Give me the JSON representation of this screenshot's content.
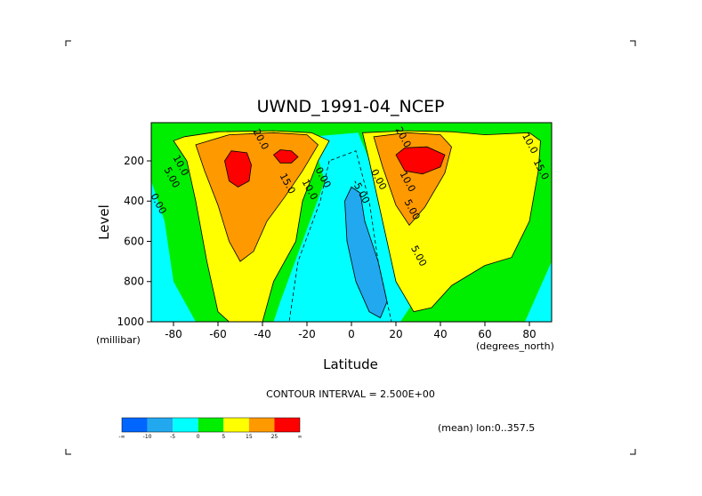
{
  "chart_data": {
    "type": "contour",
    "title": "UWND_1991-04_NCEP",
    "xlabel": "Latitude",
    "ylabel": "Level",
    "x_units": "(degrees_north)",
    "y_units": "(millibar)",
    "xlim": [
      -90,
      90
    ],
    "ylim": [
      1000,
      10
    ],
    "x_ticks": [
      -80,
      -60,
      -40,
      -20,
      0,
      20,
      40,
      60,
      80
    ],
    "x_tick_labels": [
      "-80",
      "-60",
      "-40",
      "-20",
      "0",
      "20",
      "40",
      "60",
      "80"
    ],
    "y_ticks": [
      200,
      400,
      600,
      800,
      1000
    ],
    "y_tick_labels": [
      "200",
      "400",
      "600",
      "800",
      "1000"
    ],
    "contour_interval_text": "CONTOUR INTERVAL = 2.500E+00",
    "mean_text": "(mean) lon:0..357.5",
    "contour_labels": [
      "20.0",
      "10.0",
      "5.00",
      "0.00",
      "15.0",
      "10.0",
      "0.00",
      "-5.00",
      "0.00",
      "20.0",
      "10.0",
      "5.00",
      "5.00",
      "10.0",
      "15.0"
    ],
    "colorbar": {
      "levels": [
        "-∞",
        "-10",
        "-5",
        "0",
        "5",
        "15",
        "25",
        "∞"
      ],
      "colors": [
        "#0066ff",
        "#22a8ee",
        "#00ffff",
        "#00ee00",
        "#ffff00",
        "#ff9900",
        "#ff0000"
      ]
    },
    "regions": [
      {
        "name": "sh-jet-band-5",
        "level": 5,
        "color": "#ffff00",
        "points": [
          [
            -80,
            100
          ],
          [
            -74,
            200
          ],
          [
            -70,
            400
          ],
          [
            -65,
            700
          ],
          [
            -60,
            950
          ],
          [
            -55,
            1000
          ],
          [
            -40,
            1000
          ],
          [
            -35,
            800
          ],
          [
            -25,
            600
          ],
          [
            -22,
            400
          ],
          [
            -15,
            200
          ],
          [
            -10,
            100
          ],
          [
            -18,
            60
          ],
          [
            -35,
            50
          ],
          [
            -60,
            55
          ],
          [
            -75,
            80
          ]
        ]
      },
      {
        "name": "sh-jet-band-15",
        "level": 15,
        "color": "#ff9900",
        "points": [
          [
            -70,
            120
          ],
          [
            -66,
            250
          ],
          [
            -60,
            420
          ],
          [
            -55,
            600
          ],
          [
            -50,
            700
          ],
          [
            -44,
            650
          ],
          [
            -38,
            500
          ],
          [
            -30,
            380
          ],
          [
            -22,
            250
          ],
          [
            -15,
            120
          ],
          [
            -20,
            70
          ],
          [
            -35,
            60
          ],
          [
            -55,
            70
          ]
        ]
      },
      {
        "name": "sh-jet-core-west",
        "level": 25,
        "color": "#ff0000",
        "points": [
          [
            -57,
            200
          ],
          [
            -55,
            300
          ],
          [
            -51,
            330
          ],
          [
            -46,
            300
          ],
          [
            -45,
            220
          ],
          [
            -47,
            160
          ],
          [
            -54,
            150
          ]
        ]
      },
      {
        "name": "sh-jet-core-east",
        "level": 25,
        "color": "#ff0000",
        "points": [
          [
            -35,
            170
          ],
          [
            -32,
            210
          ],
          [
            -27,
            210
          ],
          [
            -24,
            180
          ],
          [
            -27,
            150
          ],
          [
            -32,
            145
          ]
        ]
      },
      {
        "name": "nh-jet-band-5",
        "level": 5,
        "color": "#ffff00",
        "points": [
          [
            5,
            60
          ],
          [
            8,
            200
          ],
          [
            14,
            500
          ],
          [
            20,
            800
          ],
          [
            28,
            950
          ],
          [
            36,
            930
          ],
          [
            45,
            820
          ],
          [
            60,
            720
          ],
          [
            72,
            680
          ],
          [
            80,
            500
          ],
          [
            84,
            250
          ],
          [
            85,
            100
          ],
          [
            80,
            60
          ],
          [
            60,
            70
          ],
          [
            45,
            55
          ],
          [
            25,
            50
          ]
        ]
      },
      {
        "name": "nh-jet-band-15",
        "level": 15,
        "color": "#ff9900",
        "points": [
          [
            10,
            80
          ],
          [
            14,
            230
          ],
          [
            20,
            420
          ],
          [
            26,
            520
          ],
          [
            33,
            430
          ],
          [
            42,
            260
          ],
          [
            45,
            130
          ],
          [
            40,
            70
          ],
          [
            25,
            60
          ]
        ]
      },
      {
        "name": "nh-jet-core",
        "level": 25,
        "color": "#ff0000",
        "points": [
          [
            20,
            170
          ],
          [
            24,
            250
          ],
          [
            32,
            265
          ],
          [
            40,
            230
          ],
          [
            42,
            170
          ],
          [
            34,
            130
          ],
          [
            24,
            135
          ]
        ]
      },
      {
        "name": "tropical-easterly",
        "level": -5,
        "color": "#22a8ee",
        "points": [
          [
            -3,
            400
          ],
          [
            0,
            330
          ],
          [
            4,
            360
          ],
          [
            6,
            500
          ],
          [
            12,
            700
          ],
          [
            16,
            900
          ],
          [
            13,
            980
          ],
          [
            8,
            950
          ],
          [
            2,
            800
          ],
          [
            -2,
            600
          ]
        ]
      }
    ]
  }
}
